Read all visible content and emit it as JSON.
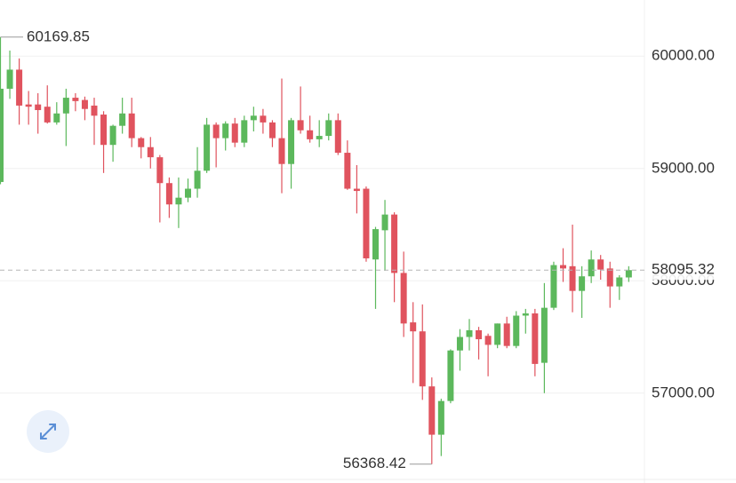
{
  "chart_data": {
    "type": "candlestick",
    "up_color": "#5cb85c",
    "down_color": "#e0535e",
    "ylim": [
      56200,
      60500
    ],
    "yticks": [
      {
        "value": 57000,
        "label": "57000.00"
      },
      {
        "value": 58000,
        "label": "58000.00"
      },
      {
        "value": 59000,
        "label": "59000.00"
      },
      {
        "value": 60000,
        "label": "60000.00"
      }
    ],
    "grid": true,
    "open": [
      58880,
      59710,
      59880,
      59570,
      59570,
      59550,
      59410,
      59490,
      59630,
      59610,
      59560,
      59480,
      59210,
      59380,
      59490,
      59270,
      59190,
      59100,
      58870,
      58680,
      58740,
      58820,
      58980,
      59390,
      59270,
      59400,
      59230,
      59430,
      59470,
      59410,
      59270,
      59040,
      59430,
      59340,
      59260,
      59290,
      59430,
      59140,
      58820,
      58820,
      58190,
      58450,
      58590,
      58070,
      57630,
      57550,
      57060,
      56630,
      56930,
      57380,
      57500,
      57560,
      57510,
      57430,
      57620,
      57420,
      57690,
      57710,
      57270,
      57760,
      58140,
      58130,
      57910,
      58040,
      58190,
      58110,
      57950,
      58030
    ],
    "high": [
      60169.85,
      60050,
      59980,
      59690,
      59670,
      59740,
      59590,
      59710,
      59670,
      59640,
      59630,
      59510,
      59390,
      59630,
      59630,
      59280,
      59280,
      59120,
      58920,
      58920,
      58910,
      59190,
      59450,
      59410,
      59420,
      59450,
      59470,
      59550,
      59530,
      59430,
      59800,
      59450,
      59730,
      59470,
      59430,
      59490,
      59490,
      59250,
      59030,
      58840,
      58480,
      58720,
      58610,
      58260,
      57810,
      57790,
      57140,
      56950,
      57390,
      57570,
      57660,
      57590,
      57530,
      57620,
      57680,
      57730,
      57750,
      57750,
      57980,
      58170,
      58290,
      58500,
      58130,
      58270,
      58230,
      58170,
      58050,
      58130
    ],
    "low": [
      58860,
      59620,
      59390,
      59390,
      59310,
      59400,
      59390,
      59200,
      59510,
      59430,
      59210,
      58960,
      59060,
      59310,
      59190,
      59090,
      59000,
      58520,
      58560,
      58470,
      58700,
      58740,
      58960,
      59010,
      59160,
      59190,
      59190,
      59330,
      59310,
      59190,
      58780,
      58820,
      59310,
      59230,
      59190,
      59250,
      59120,
      58810,
      58600,
      58170,
      57750,
      58090,
      57810,
      57500,
      57090,
      56940,
      56368.42,
      56440,
      56910,
      57200,
      57380,
      57300,
      57150,
      57400,
      57400,
      57400,
      57530,
      57150,
      57000,
      57740,
      57990,
      57720,
      57670,
      57980,
      58010,
      57760,
      57830,
      57990
    ],
    "close": [
      59710,
      59880,
      59560,
      59550,
      59520,
      59410,
      59490,
      59630,
      59600,
      59530,
      59470,
      59210,
      59380,
      59490,
      59270,
      59190,
      59100,
      58870,
      58680,
      58740,
      58820,
      58980,
      59390,
      59270,
      59400,
      59230,
      59430,
      59470,
      59410,
      59270,
      59040,
      59430,
      59340,
      59260,
      59290,
      59430,
      59140,
      58820,
      58800,
      58200,
      58460,
      58590,
      58070,
      57620,
      57550,
      57060,
      56630,
      56930,
      57380,
      57500,
      57560,
      57480,
      57430,
      57620,
      57420,
      57690,
      57710,
      57260,
      57760,
      58140,
      58110,
      57910,
      58040,
      58190,
      58100,
      57950,
      58030,
      58095.32
    ],
    "high_label": {
      "value": 60169.85,
      "label": "60169.85"
    },
    "low_label": {
      "value": 56368.42,
      "label": "56368.42"
    },
    "last_price": {
      "value": 58095.32,
      "label": "58095.32"
    }
  }
}
